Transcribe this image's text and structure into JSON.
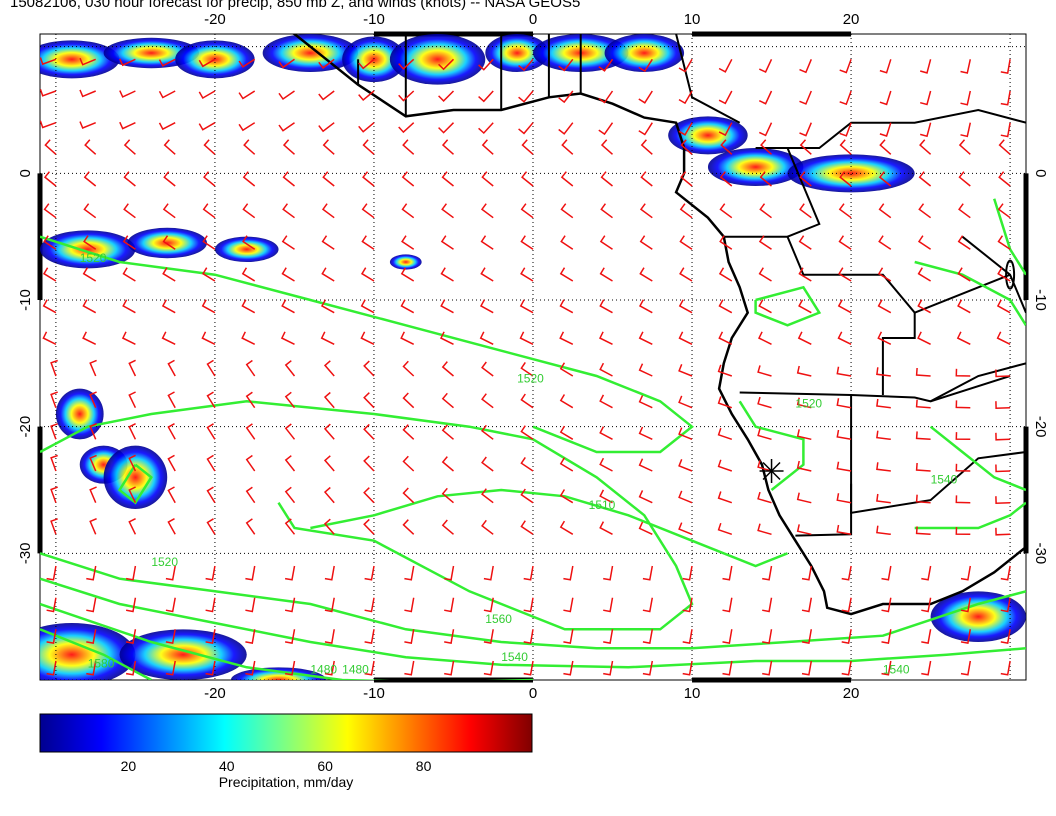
{
  "title": "15082106, 030 hour forecast for precip, 850 mb Z, and winds (knots) -- NASA GEOS5",
  "map": {
    "lon_range": [
      -31,
      31
    ],
    "lat_range": [
      -40,
      11
    ],
    "lon_ticks": [
      "-20",
      "-10",
      "0",
      "10",
      "20"
    ],
    "lat_ticks": [
      "0",
      "-10",
      "-20",
      "-30"
    ],
    "contour_color": "#33ee33",
    "barb_color": "#ee1111",
    "coast_color": "#000000",
    "contour_labels": [
      {
        "text": "1520",
        "lon": -28.5,
        "lat": -7.0
      },
      {
        "text": "1520",
        "lon": -1,
        "lat": -16.5
      },
      {
        "text": "1520",
        "lon": 16.5,
        "lat": -18.5
      },
      {
        "text": "1520",
        "lon": -24.0,
        "lat": -31.0
      },
      {
        "text": "1510",
        "lon": 3.5,
        "lat": -26.5
      },
      {
        "text": "1540",
        "lon": 25.0,
        "lat": -24.5
      },
      {
        "text": "1560",
        "lon": -3.0,
        "lat": -35.5
      },
      {
        "text": "1540",
        "lon": -2.0,
        "lat": -38.5
      },
      {
        "text": "1580",
        "lon": -28.0,
        "lat": -39.0
      },
      {
        "text": "1540",
        "lon": 22.0,
        "lat": -39.5
      },
      {
        "text": "1480",
        "lon": -14.0,
        "lat": -39.5
      },
      {
        "text": "1480",
        "lon": -12.0,
        "lat": -39.5
      }
    ],
    "marker": {
      "lon": 15.0,
      "lat": -23.5
    }
  },
  "colorbar": {
    "title": "Precipitation, mm/day",
    "ticks": [
      "20",
      "40",
      "60",
      "80"
    ],
    "colors": [
      "#00008f",
      "#0000ff",
      "#0080ff",
      "#00ffff",
      "#80ff80",
      "#ffff00",
      "#ff8000",
      "#ff0000",
      "#800000"
    ]
  }
}
